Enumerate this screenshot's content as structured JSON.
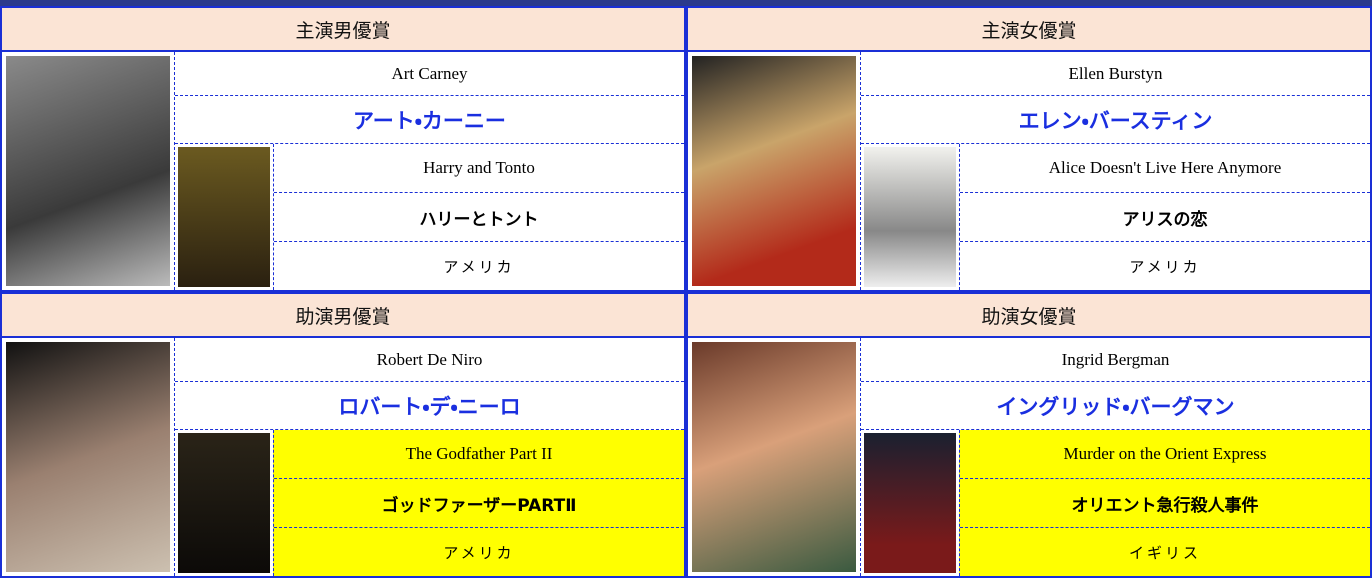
{
  "awards": [
    {
      "category": "主演男優賞",
      "name_en": "Art Carney",
      "name_ja": "アート・カーニー",
      "film_en": "Harry and Tonto",
      "film_ja": "ハリーとトント",
      "country": "アメリカ"
    },
    {
      "category": "主演女優賞",
      "name_en": "Ellen Burstyn",
      "name_ja": "エレン・バースティン",
      "film_en": "Alice Doesn't Live Here Anymore",
      "film_ja": "アリスの恋",
      "country": "アメリカ"
    },
    {
      "category": "助演男優賞",
      "name_en": "Robert De Niro",
      "name_ja": "ロバート・デ・ニーロ",
      "film_en": "The Godfather Part II",
      "film_ja": "ゴッドファーザーPARTⅡ",
      "country": "アメリカ"
    },
    {
      "category": "助演女優賞",
      "name_en": "Ingrid Bergman",
      "name_ja": "イングリッド・バーグマン",
      "film_en": "Murder on the Orient Express",
      "film_ja": "オリエント急行殺人事件",
      "country": "イギリス"
    }
  ]
}
